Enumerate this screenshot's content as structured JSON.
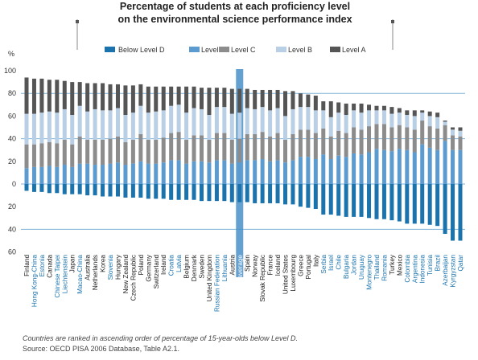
{
  "chart_data": {
    "type": "bar",
    "title_line1": "Percentage of students at each proficiency level",
    "title_line2": "on the environmental science performance index",
    "ylabel": "%",
    "ylim": [
      -60,
      100
    ],
    "yticks": [
      {
        "value": 100,
        "label": "100"
      },
      {
        "value": 80,
        "label": "80"
      },
      {
        "value": 60,
        "label": "60"
      },
      {
        "value": 40,
        "label": "40"
      },
      {
        "value": 20,
        "label": "20"
      },
      {
        "value": 0,
        "label": "0"
      },
      {
        "value": -20,
        "label": "20"
      },
      {
        "value": -40,
        "label": "40"
      },
      {
        "value": -60,
        "label": "60"
      }
    ],
    "legend": [
      {
        "name": "Below Level D",
        "color": "#1a73ad"
      },
      {
        "name": "Level D",
        "color": "#5b9bd0"
      },
      {
        "name": "Level C",
        "color": "#8c8c8c"
      },
      {
        "name": "Level B",
        "color": "#b9cfe6"
      },
      {
        "name": "Level A",
        "color": "#555555"
      }
    ],
    "series_order": [
      "Below Level D",
      "Level D",
      "Level C",
      "Level B",
      "Level A"
    ],
    "categories": [
      {
        "name": "Finland",
        "highlight": false,
        "below": 6,
        "D": 14,
        "C": 21,
        "B": 27,
        "A": 32
      },
      {
        "name": "Hong Kong-China",
        "highlight": true,
        "below": 7,
        "D": 15,
        "C": 20,
        "B": 27,
        "A": 31
      },
      {
        "name": "Estonia",
        "highlight": true,
        "below": 7,
        "D": 15,
        "C": 21,
        "B": 27,
        "A": 30
      },
      {
        "name": "Canada",
        "highlight": false,
        "below": 8,
        "D": 16,
        "C": 21,
        "B": 27,
        "A": 28
      },
      {
        "name": "Chinese Taipei",
        "highlight": true,
        "below": 8,
        "D": 15,
        "C": 21,
        "B": 27,
        "A": 29
      },
      {
        "name": "Liechtenstein",
        "highlight": true,
        "below": 9,
        "D": 17,
        "C": 22,
        "B": 27,
        "A": 25
      },
      {
        "name": "Japan",
        "highlight": false,
        "below": 9,
        "D": 15,
        "C": 20,
        "B": 26,
        "A": 29
      },
      {
        "name": "Macao-China",
        "highlight": true,
        "below": 9,
        "D": 18,
        "C": 24,
        "B": 27,
        "A": 21
      },
      {
        "name": "Australia",
        "highlight": false,
        "below": 10,
        "D": 18,
        "C": 21,
        "B": 25,
        "A": 25
      },
      {
        "name": "Netherlands",
        "highlight": false,
        "below": 10,
        "D": 17,
        "C": 22,
        "B": 27,
        "A": 23
      },
      {
        "name": "Korea",
        "highlight": false,
        "below": 11,
        "D": 17,
        "C": 22,
        "B": 26,
        "A": 24
      },
      {
        "name": "Slovenia",
        "highlight": true,
        "below": 11,
        "D": 18,
        "C": 22,
        "B": 25,
        "A": 23
      },
      {
        "name": "Hungary",
        "highlight": false,
        "below": 11,
        "D": 19,
        "C": 23,
        "B": 25,
        "A": 21
      },
      {
        "name": "New Zealand",
        "highlight": false,
        "below": 12,
        "D": 17,
        "C": 20,
        "B": 24,
        "A": 26
      },
      {
        "name": "Czech Republic",
        "highlight": false,
        "below": 12,
        "D": 18,
        "C": 21,
        "B": 24,
        "A": 24
      },
      {
        "name": "Poland",
        "highlight": false,
        "below": 12,
        "D": 20,
        "C": 24,
        "B": 25,
        "A": 19
      },
      {
        "name": "Germany",
        "highlight": false,
        "below": 13,
        "D": 18,
        "C": 21,
        "B": 24,
        "A": 23
      },
      {
        "name": "Switzerland",
        "highlight": false,
        "below": 13,
        "D": 18,
        "C": 21,
        "B": 25,
        "A": 22
      },
      {
        "name": "Ireland",
        "highlight": false,
        "below": 13,
        "D": 19,
        "C": 22,
        "B": 24,
        "A": 21
      },
      {
        "name": "Croatia",
        "highlight": true,
        "below": 14,
        "D": 21,
        "C": 24,
        "B": 24,
        "A": 17
      },
      {
        "name": "Latvia",
        "highlight": true,
        "below": 14,
        "D": 21,
        "C": 25,
        "B": 24,
        "A": 16
      },
      {
        "name": "Belgium",
        "highlight": false,
        "below": 14,
        "D": 18,
        "C": 21,
        "B": 24,
        "A": 23
      },
      {
        "name": "Denmark",
        "highlight": false,
        "below": 14,
        "D": 20,
        "C": 23,
        "B": 24,
        "A": 19
      },
      {
        "name": "Sweden",
        "highlight": false,
        "below": 15,
        "D": 20,
        "C": 23,
        "B": 23,
        "A": 19
      },
      {
        "name": "United Kingdom",
        "highlight": false,
        "below": 15,
        "D": 19,
        "C": 20,
        "B": 22,
        "A": 24
      },
      {
        "name": "Russian Federation",
        "highlight": true,
        "below": 15,
        "D": 21,
        "C": 24,
        "B": 23,
        "A": 17
      },
      {
        "name": "Lithuania",
        "highlight": true,
        "below": 15,
        "D": 21,
        "C": 24,
        "B": 23,
        "A": 17
      },
      {
        "name": "Austria",
        "highlight": false,
        "below": 16,
        "D": 18,
        "C": 21,
        "B": 23,
        "A": 22
      },
      {
        "name": "OECD average",
        "highlight": false,
        "oecd": true,
        "below": 16,
        "D": 19,
        "C": 21,
        "B": 23,
        "A": 21
      },
      {
        "name": "Spain",
        "highlight": false,
        "below": 16,
        "D": 21,
        "C": 23,
        "B": 23,
        "A": 17
      },
      {
        "name": "Norway",
        "highlight": false,
        "below": 17,
        "D": 21,
        "C": 23,
        "B": 22,
        "A": 17
      },
      {
        "name": "Slovak Republic",
        "highlight": false,
        "below": 17,
        "D": 22,
        "C": 24,
        "B": 22,
        "A": 15
      },
      {
        "name": "France",
        "highlight": false,
        "below": 17,
        "D": 20,
        "C": 22,
        "B": 23,
        "A": 18
      },
      {
        "name": "Iceland",
        "highlight": false,
        "below": 17,
        "D": 21,
        "C": 24,
        "B": 22,
        "A": 16
      },
      {
        "name": "United States",
        "highlight": false,
        "below": 18,
        "D": 19,
        "C": 20,
        "B": 21,
        "A": 22
      },
      {
        "name": "Luxembourg",
        "highlight": false,
        "below": 18,
        "D": 21,
        "C": 23,
        "B": 22,
        "A": 16
      },
      {
        "name": "Greece",
        "highlight": false,
        "below": 20,
        "D": 24,
        "C": 24,
        "B": 20,
        "A": 12
      },
      {
        "name": "Portugal",
        "highlight": false,
        "below": 21,
        "D": 24,
        "C": 24,
        "B": 20,
        "A": 11
      },
      {
        "name": "Italy",
        "highlight": false,
        "below": 22,
        "D": 22,
        "C": 23,
        "B": 20,
        "A": 13
      },
      {
        "name": "Serbia",
        "highlight": true,
        "below": 27,
        "D": 26,
        "C": 23,
        "B": 16,
        "A": 8
      },
      {
        "name": "Israel",
        "highlight": true,
        "below": 27,
        "D": 22,
        "C": 20,
        "B": 17,
        "A": 14
      },
      {
        "name": "Chile",
        "highlight": true,
        "below": 28,
        "D": 25,
        "C": 22,
        "B": 16,
        "A": 9
      },
      {
        "name": "Bulgaria",
        "highlight": true,
        "below": 29,
        "D": 24,
        "C": 21,
        "B": 16,
        "A": 10
      },
      {
        "name": "Jordan",
        "highlight": true,
        "below": 29,
        "D": 27,
        "C": 23,
        "B": 15,
        "A": 6
      },
      {
        "name": "Uruguay",
        "highlight": true,
        "below": 29,
        "D": 26,
        "C": 22,
        "B": 15,
        "A": 8
      },
      {
        "name": "Montenegro",
        "highlight": true,
        "below": 30,
        "D": 28,
        "C": 23,
        "B": 14,
        "A": 5
      },
      {
        "name": "Thailand",
        "highlight": true,
        "below": 31,
        "D": 31,
        "C": 22,
        "B": 12,
        "A": 4
      },
      {
        "name": "Romania",
        "highlight": true,
        "below": 31,
        "D": 30,
        "C": 23,
        "B": 12,
        "A": 4
      },
      {
        "name": "Turkey",
        "highlight": false,
        "below": 32,
        "D": 29,
        "C": 21,
        "B": 12,
        "A": 6
      },
      {
        "name": "Mexico",
        "highlight": false,
        "below": 33,
        "D": 31,
        "C": 21,
        "B": 11,
        "A": 4
      },
      {
        "name": "Colombia",
        "highlight": true,
        "below": 35,
        "D": 30,
        "C": 20,
        "B": 11,
        "A": 4
      },
      {
        "name": "Argentina",
        "highlight": true,
        "below": 35,
        "D": 28,
        "C": 20,
        "B": 12,
        "A": 5
      },
      {
        "name": "Indonesia",
        "highlight": true,
        "below": 35,
        "D": 35,
        "C": 21,
        "B": 7,
        "A": 2
      },
      {
        "name": "Tunisia",
        "highlight": true,
        "below": 36,
        "D": 32,
        "C": 19,
        "B": 9,
        "A": 4
      },
      {
        "name": "Brazil",
        "highlight": true,
        "below": 37,
        "D": 30,
        "C": 19,
        "B": 10,
        "A": 4
      },
      {
        "name": "Azerbaijan",
        "highlight": true,
        "below": 44,
        "D": 38,
        "C": 14,
        "B": 3,
        "A": 1
      },
      {
        "name": "Kyrgyzstan",
        "highlight": true,
        "below": 50,
        "D": 30,
        "C": 13,
        "B": 5,
        "A": 2
      },
      {
        "name": "Qatar",
        "highlight": true,
        "below": 50,
        "D": 30,
        "C": 12,
        "B": 5,
        "A": 3
      }
    ]
  },
  "footnote": "Countries are ranked in ascending order of percentage of 15-year-olds below Level D.",
  "source": "Source: OECD PISA 2006 Database, Table A2.1.",
  "colors": {
    "gridline": "#7fb2d8",
    "highlight_label": "#1a73ad",
    "oecd_band": "#4a90c8"
  }
}
